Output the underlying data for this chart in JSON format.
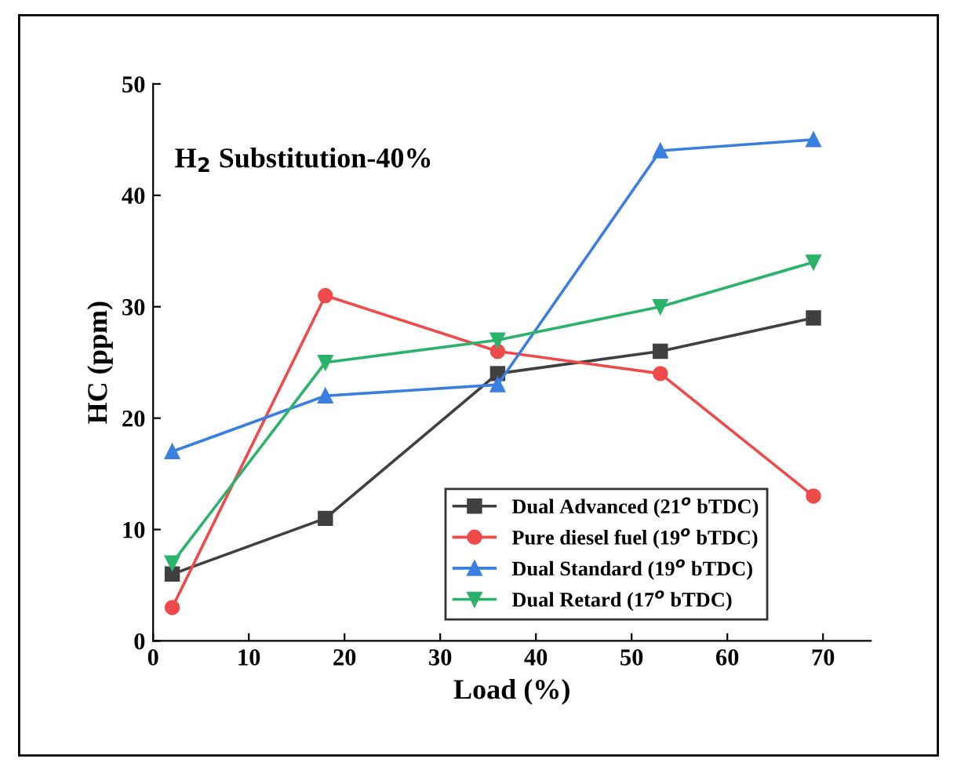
{
  "chart_data": {
    "type": "line",
    "xlabel": "Load (%)",
    "ylabel": "HC (ppm)",
    "annotations": [
      "H$_{2}$ Substitution-40%"
    ],
    "x": [
      2,
      18,
      36,
      53,
      69
    ],
    "series": [
      {
        "name": "Dual Advanced (21$^{o}$ bTDC)",
        "color": "#404040",
        "marker": "square",
        "values": [
          6,
          11,
          24,
          26,
          29
        ]
      },
      {
        "name": "Pure diesel fuel (19$^{o}$ bTDC)",
        "color": "#ef4a4a",
        "marker": "circle",
        "values": [
          3,
          31,
          26,
          24,
          13
        ]
      },
      {
        "name": "Dual Standard (19$^{o}$ bTDC)",
        "color": "#3a7fe0",
        "marker": "triangle",
        "values": [
          17,
          22,
          23,
          44,
          45
        ]
      },
      {
        "name": "Dual Retard (17$^{o}$ bTDC)",
        "color": "#2bb36b",
        "marker": "triangle_down",
        "values": [
          7,
          25,
          27,
          30,
          34
        ]
      }
    ],
    "xlim": [
      0,
      75
    ],
    "xticks": [
      0,
      10,
      20,
      30,
      40,
      50,
      60,
      70
    ],
    "ylim": [
      0,
      50
    ],
    "yticks": [
      0,
      10,
      20,
      30,
      40,
      50
    ],
    "legend": "bottom right",
    "grid": false,
    "line_style": "solid"
  }
}
